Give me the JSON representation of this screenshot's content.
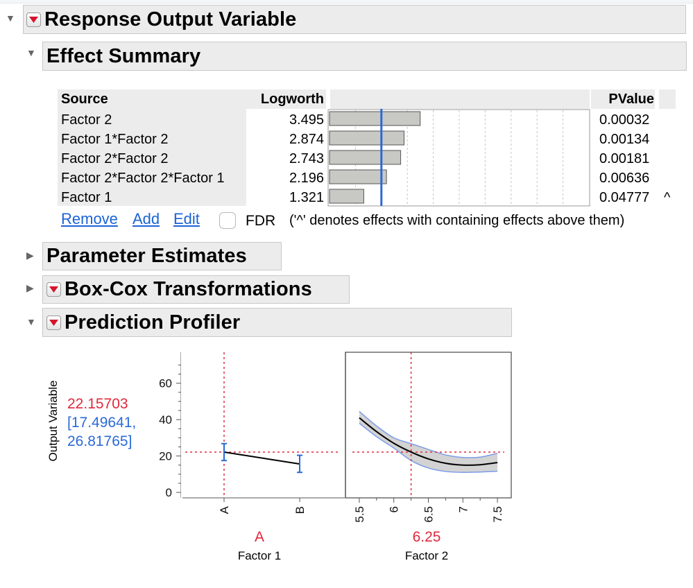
{
  "sections": {
    "response": {
      "title": "Response Output Variable"
    },
    "effect_summary": {
      "title": "Effect Summary"
    },
    "parameter_estimates": {
      "title": "Parameter Estimates"
    },
    "box_cox": {
      "title": "Box-Cox Transformations"
    },
    "profiler": {
      "title": "Prediction Profiler"
    }
  },
  "effect_table": {
    "headers": {
      "source": "Source",
      "logworth": "Logworth",
      "pvalue": "PValue"
    },
    "rows": [
      {
        "source": "Factor 2",
        "logworth": "3.495",
        "pvalue": "0.00032",
        "flag": ""
      },
      {
        "source": "Factor 1*Factor 2",
        "logworth": "2.874",
        "pvalue": "0.00134",
        "flag": ""
      },
      {
        "source": "Factor 2*Factor 2",
        "logworth": "2.743",
        "pvalue": "0.00181",
        "flag": ""
      },
      {
        "source": "Factor 2*Factor 2*Factor 1",
        "logworth": "2.196",
        "pvalue": "0.00636",
        "flag": ""
      },
      {
        "source": "Factor 1",
        "logworth": "1.321",
        "pvalue": "0.04777",
        "flag": "^"
      }
    ],
    "bar_values": [
      3.495,
      2.874,
      2.743,
      2.196,
      1.321
    ],
    "bar_scale_max": 10,
    "reference_line_value": 2,
    "buttons": {
      "remove": "Remove",
      "add": "Add",
      "edit": "Edit"
    },
    "fdr_label": "FDR",
    "fdr_checked": false,
    "note": "('^' denotes effects with containing effects above them)"
  },
  "profiler": {
    "y_label": "Output Variable",
    "predicted_value": "22.15703",
    "ci_line1": "[17.49641,",
    "ci_line2": "26.81765]",
    "factor1": {
      "name": "Factor 1",
      "current": "A"
    },
    "factor2": {
      "name": "Factor 2",
      "current": "6.25"
    },
    "colors": {
      "red": "#e0283c",
      "blue": "#2a6ad6",
      "band_fill": "#d3d3d3",
      "band_edge": "#7b9bea"
    }
  },
  "chart_data": [
    {
      "type": "line",
      "panel": "Factor 1",
      "xlabel": "Factor 1",
      "ylabel": "Output Variable",
      "ylim": [
        -3,
        77
      ],
      "y_ticks": [
        0,
        20,
        40,
        60
      ],
      "categories": [
        "A",
        "B"
      ],
      "values": [
        22.16,
        15.6
      ],
      "ci_low": [
        17.5,
        11.0
      ],
      "ci_high": [
        26.8,
        20.4
      ],
      "current_x": "A",
      "current_y": 22.16
    },
    {
      "type": "line",
      "panel": "Factor 2",
      "xlabel": "Factor 2",
      "ylim": [
        -3,
        77
      ],
      "xlim": [
        5.3,
        7.7
      ],
      "x_ticks": [
        "5.5",
        "6",
        "6.5",
        "7",
        "7.5"
      ],
      "x": [
        5.5,
        5.75,
        6.0,
        6.25,
        6.5,
        6.75,
        7.0,
        7.25,
        7.5
      ],
      "values": [
        41,
        33.4,
        27,
        22.16,
        18.4,
        16,
        15,
        15.2,
        16.4
      ],
      "ci_low": [
        38,
        30.6,
        24.4,
        17.5,
        13.4,
        11.5,
        11,
        11.2,
        11.6
      ],
      "ci_high": [
        44.5,
        36.5,
        30,
        26.8,
        23.6,
        20.6,
        19.2,
        19.4,
        21.5
      ],
      "current_x": 6.25,
      "current_y": 22.16
    }
  ]
}
